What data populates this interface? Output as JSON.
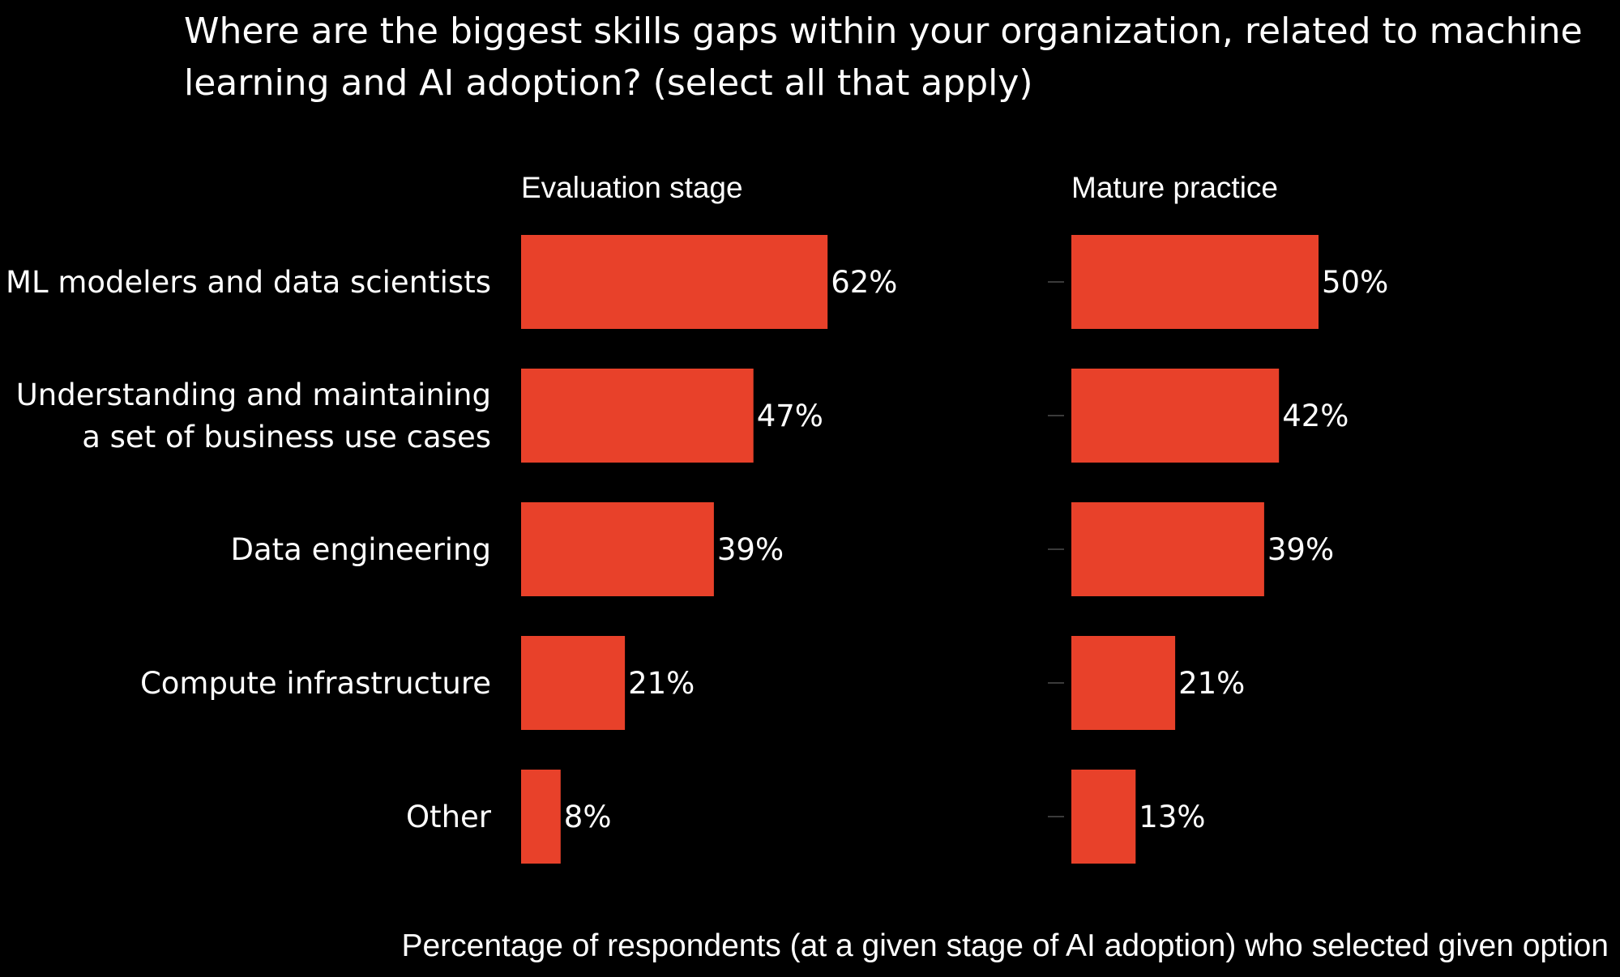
{
  "chart_data": {
    "type": "bar",
    "orientation": "horizontal",
    "title_lines": [
      "Where are the biggest skills gaps within your organization, related to machine",
      "learning and AI adoption? (select all that apply)"
    ],
    "categories": [
      [
        "ML modelers and data scientists"
      ],
      [
        "Understanding and maintaining",
        "a set of business use cases"
      ],
      [
        "Data engineering"
      ],
      [
        "Compute infrastructure"
      ],
      [
        "Other"
      ]
    ],
    "series": [
      {
        "name": "Evaluation stage",
        "values": [
          62,
          47,
          39,
          21,
          8
        ],
        "labels": [
          "62%",
          "47%",
          "39%",
          "21%",
          "8%"
        ]
      },
      {
        "name": "Mature practice",
        "values": [
          50,
          42,
          39,
          21,
          13
        ],
        "labels": [
          "50%",
          "42%",
          "39%",
          "21%",
          "13%"
        ]
      }
    ],
    "xlabel": "Percentage of respondents (at a given stage of AI adoption) who selected given option",
    "bar_color": "#e8412a",
    "background": "#000000",
    "text_color": "#ffffff",
    "grid": false,
    "legend": "none"
  }
}
